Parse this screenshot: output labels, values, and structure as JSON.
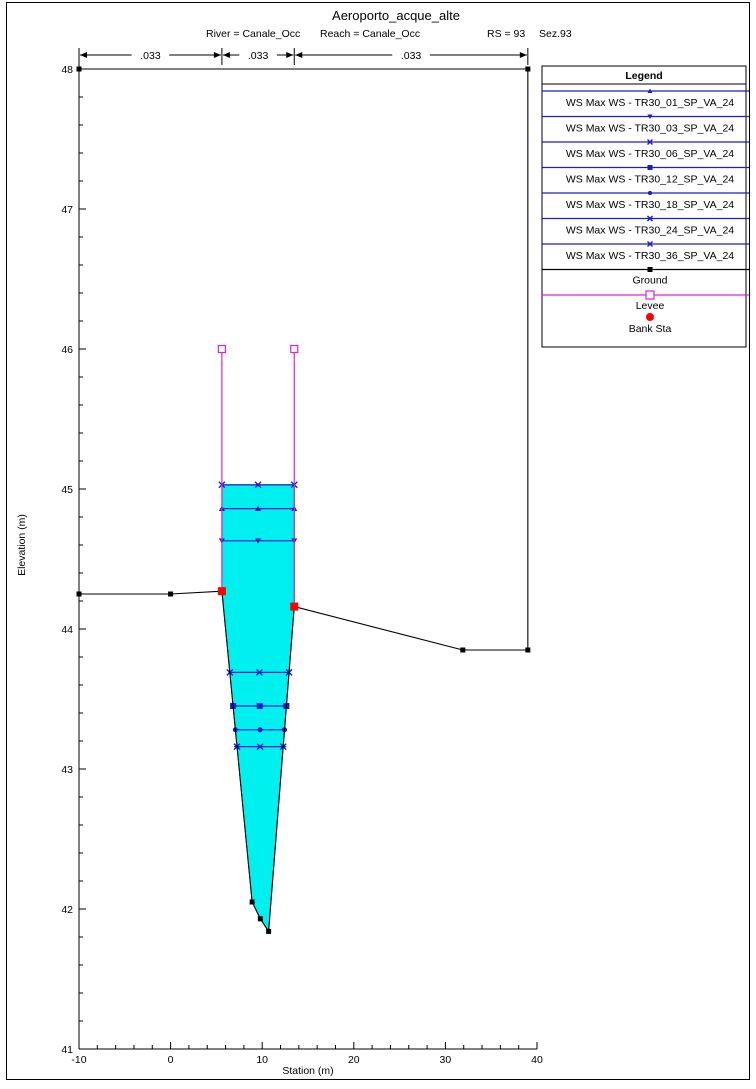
{
  "chart_data": {
    "type": "line",
    "title": "Aeroporto_acque_alte",
    "subtitle_parts": [
      "River = Canale_Occ",
      "Reach = Canale_Occ",
      "RS = 93",
      "Sez.93"
    ],
    "xlabel": "Station (m)",
    "ylabel": "Elevation (m)",
    "xlim": [
      -10,
      40
    ],
    "ylim": [
      41,
      48.2
    ],
    "x_ticks": [
      -10,
      0,
      10,
      20,
      30,
      40
    ],
    "y_ticks": [
      41,
      42,
      43,
      44,
      45,
      46,
      47,
      48
    ],
    "grid": false,
    "legend_position": "right",
    "legend_title": "Legend",
    "manning_n": {
      "labels": [
        ".033",
        ".033",
        ".033"
      ],
      "breaks": [
        -10,
        5.6,
        13.5,
        39
      ]
    },
    "colors": {
      "ws_line": "#1c1ccc",
      "ground": "#000000",
      "levee": "#e020e0",
      "bank": "#ff0000",
      "water_fill": "#00f0f0"
    },
    "ground": {
      "name": "Ground",
      "x": [
        -10,
        0,
        5.6,
        8.9,
        9.8,
        10.7,
        13.5,
        31.9,
        39,
        39,
        -10
      ],
      "y": [
        44.25,
        44.25,
        44.27,
        42.05,
        41.93,
        41.84,
        44.16,
        43.85,
        43.85,
        48,
        48
      ]
    },
    "levees": {
      "name": "Levee",
      "lines": [
        {
          "x": 5.6,
          "y_top": 46.0,
          "y_bottom": 44.27
        },
        {
          "x": 13.5,
          "y_top": 46.0,
          "y_bottom": 44.16
        }
      ]
    },
    "bank_stations": {
      "name": "Bank Sta",
      "points": [
        {
          "x": 5.6,
          "y": 44.27
        },
        {
          "x": 13.5,
          "y": 44.16
        }
      ]
    },
    "water_fill_top": 45.03,
    "series": [
      {
        "name": "WS Max WS - TR30_01_SP_VA_24",
        "marker": "triangle-up",
        "y": 44.86
      },
      {
        "name": "WS Max WS - TR30_03_SP_VA_24",
        "marker": "triangle-down",
        "y": 44.63
      },
      {
        "name": "WS Max WS - TR30_06_SP_VA_24",
        "marker": "x",
        "y": 43.69
      },
      {
        "name": "WS Max WS - TR30_12_SP_VA_24",
        "marker": "square",
        "y": 43.45
      },
      {
        "name": "WS Max WS - TR30_18_SP_VA_24",
        "marker": "circle",
        "y": 43.28
      },
      {
        "name": "WS Max WS - TR30_24_SP_VA_24",
        "marker": "star",
        "y": 43.16
      },
      {
        "name": "WS Max WS - TR30_36_SP_VA_24",
        "marker": "x",
        "y": 45.03
      }
    ]
  }
}
